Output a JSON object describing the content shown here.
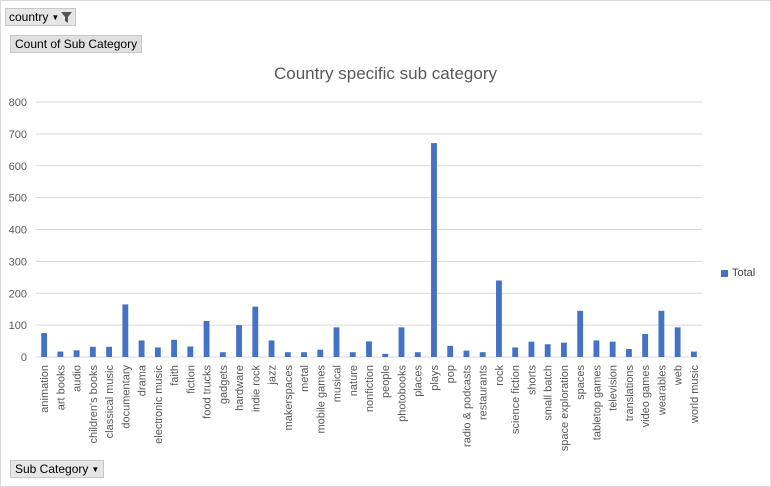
{
  "pivot": {
    "report_filter": "country",
    "values_field": "Count of Sub Category",
    "axis_field": "Sub Category"
  },
  "colors": {
    "bar": "#4472c4",
    "grid": "#d9d9d9",
    "text": "#595959"
  },
  "chart_data": {
    "type": "bar",
    "title": "Country specific sub category",
    "ylim": [
      0,
      800
    ],
    "yticks": [
      0,
      100,
      200,
      300,
      400,
      500,
      600,
      700,
      800
    ],
    "grid": true,
    "legend_position": "right",
    "categories": [
      "animation",
      "art books",
      "audio",
      "children's books",
      "classical music",
      "documentary",
      "drama",
      "electronic music",
      "faith",
      "fiction",
      "food trucks",
      "gadgets",
      "hardware",
      "indie rock",
      "jazz",
      "makerspaces",
      "metal",
      "mobile games",
      "musical",
      "nature",
      "nonfiction",
      "people",
      "photobooks",
      "places",
      "plays",
      "pop",
      "radio & podcasts",
      "restaurants",
      "rock",
      "science fiction",
      "shorts",
      "small batch",
      "space exploration",
      "spaces",
      "tabletop games",
      "television",
      "translations",
      "video games",
      "wearables",
      "web",
      "world music"
    ],
    "series": [
      {
        "name": "Total",
        "values": [
          75,
          17,
          21,
          32,
          32,
          165,
          52,
          30,
          54,
          33,
          113,
          15,
          100,
          158,
          52,
          15,
          15,
          23,
          93,
          15,
          49,
          10,
          93,
          15,
          671,
          35,
          20,
          15,
          240,
          30,
          48,
          40,
          45,
          145,
          52,
          48,
          25,
          72,
          145,
          93,
          17
        ]
      }
    ]
  }
}
